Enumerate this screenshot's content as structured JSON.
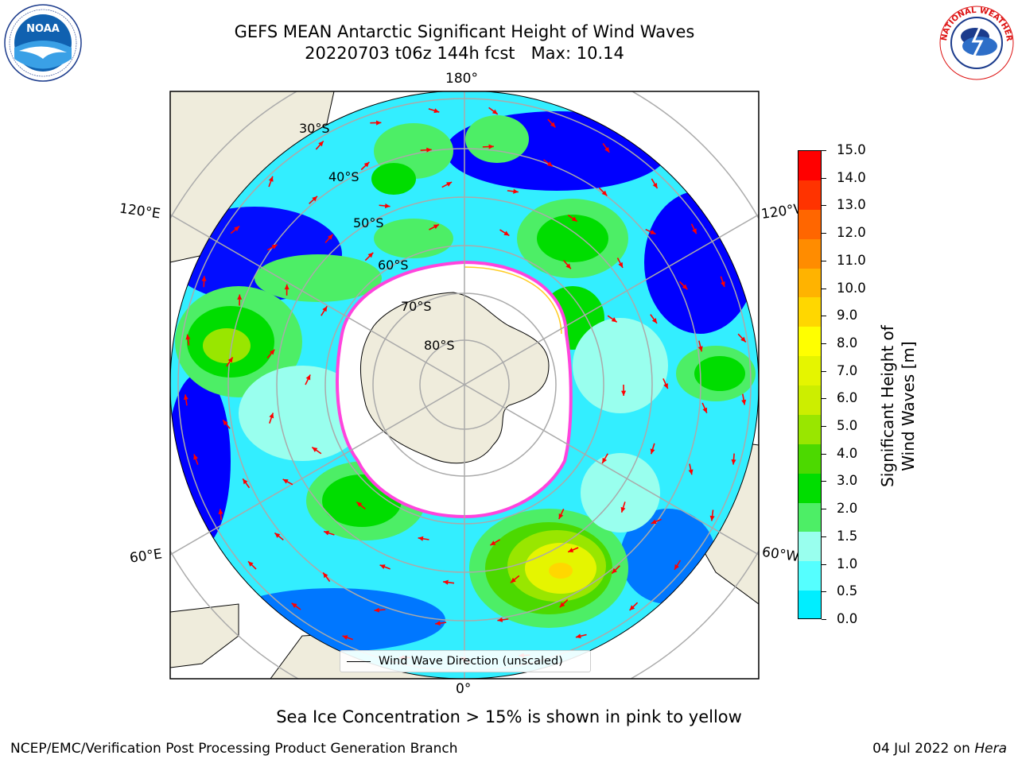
{
  "title_line1": "GEFS MEAN Antarctic Significant Height of Wind Waves",
  "title_line2": "20220703 t06z 144h fcst   Max: 10.14",
  "logos": {
    "left": "NOAA",
    "right": "NATIONAL WEATHER SERVICE"
  },
  "map": {
    "longitude_labels": [
      "180°",
      "120°E",
      "120°W",
      "60°E",
      "60°W",
      "0°"
    ],
    "latitude_labels": [
      "30°S",
      "40°S",
      "50°S",
      "60°S",
      "70°S",
      "80°S"
    ],
    "legend_label": "Wind Wave Direction (unscaled)",
    "arrow_color": "#ff0000",
    "land_color": "#efecdc",
    "sea_ice_note": "Sea Ice Concentration > 15% is shown in pink to yellow"
  },
  "colorbar": {
    "label": "Significant Height of Wind Waves [m]",
    "ticks": [
      "15.0",
      "14.0",
      "13.0",
      "12.0",
      "11.0",
      "10.0",
      "9.0",
      "8.0",
      "7.0",
      "6.0",
      "5.0",
      "4.0",
      "3.0",
      "2.0",
      "1.5",
      "1.0",
      "0.5",
      "0.0"
    ],
    "colors_top_to_bottom": [
      "#ff0000",
      "#ff3300",
      "#ff6600",
      "#ff8c00",
      "#ffb300",
      "#ffd700",
      "#ffff00",
      "#e5f500",
      "#ccee00",
      "#99e600",
      "#4cd900",
      "#00dd00",
      "#4dee66",
      "#99ffee",
      "#55ffff",
      "#00eeff",
      "#0077ff",
      "#0000ff"
    ]
  },
  "footer": {
    "left": "NCEP/EMC/Verification Post Processing Product Generation Branch",
    "right_date": "04 Jul 2022 on ",
    "right_machine": "Hera"
  }
}
